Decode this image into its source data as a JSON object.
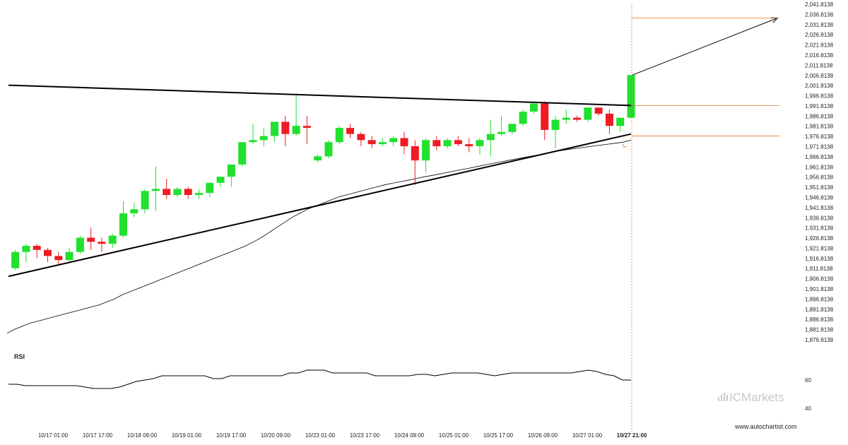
{
  "chart_data": {
    "type": "candlestick",
    "y_axis": {
      "min": 1876.8138,
      "max": 2041.8138,
      "step": 5,
      "tick_labels": [
        "2,041.8138",
        "2,036.8138",
        "2,031.8138",
        "2,026.8138",
        "2,021.8138",
        "2,016.8138",
        "2,011.8138",
        "2,006.8138",
        "2,001.8138",
        "1,996.8138",
        "1,991.8138",
        "1,986.8138",
        "1,981.8138",
        "1,976.8138",
        "1,971.8138",
        "1,966.8138",
        "1,961.8138",
        "1,956.8138",
        "1,951.8138",
        "1,946.8138",
        "1,941.8138",
        "1,936.8138",
        "1,931.8138",
        "1,926.8138",
        "1,921.8138",
        "1,916.8138",
        "1,911.8138",
        "1,906.8138",
        "1,901.8138",
        "1,896.8138",
        "1,891.8138",
        "1,886.8138",
        "1,881.8138",
        "1,876.8138"
      ]
    },
    "x_axis": {
      "tick_labels": [
        "10/17 01:00",
        "10/17 17:00",
        "10/18 09:00",
        "10/19 01:00",
        "10/19 17:00",
        "10/20 09:00",
        "10/23 01:00",
        "10/23 17:00",
        "10/24 09:00",
        "10/25 01:00",
        "10/25 17:00",
        "10/26 09:00",
        "10/27 01:00",
        "10/27 21:00"
      ],
      "highlight_label": "10/27 21:00"
    },
    "candles": [
      {
        "o": 1912,
        "h": 1921,
        "c": 1920,
        "l": 1911
      },
      {
        "o": 1920,
        "h": 1924,
        "c": 1923,
        "l": 1915
      },
      {
        "o": 1923,
        "h": 1924,
        "c": 1921,
        "l": 1917
      },
      {
        "o": 1921,
        "h": 1922,
        "c": 1918,
        "l": 1915
      },
      {
        "o": 1918,
        "h": 1920,
        "c": 1916,
        "l": 1914
      },
      {
        "o": 1916,
        "h": 1922,
        "c": 1920,
        "l": 1915
      },
      {
        "o": 1920,
        "h": 1928,
        "c": 1927,
        "l": 1919
      },
      {
        "o": 1927,
        "h": 1932,
        "c": 1925,
        "l": 1921
      },
      {
        "o": 1925,
        "h": 1927,
        "c": 1924,
        "l": 1920
      },
      {
        "o": 1924,
        "h": 1929,
        "c": 1928,
        "l": 1922
      },
      {
        "o": 1928,
        "h": 1945,
        "c": 1939,
        "l": 1927
      },
      {
        "o": 1939,
        "h": 1944,
        "c": 1941,
        "l": 1937
      },
      {
        "o": 1941,
        "h": 1951,
        "c": 1950,
        "l": 1939
      },
      {
        "o": 1950,
        "h": 1962,
        "c": 1951,
        "l": 1940
      },
      {
        "o": 1951,
        "h": 1956,
        "c": 1948,
        "l": 1946
      },
      {
        "o": 1948,
        "h": 1952,
        "c": 1951,
        "l": 1947
      },
      {
        "o": 1951,
        "h": 1952,
        "c": 1948,
        "l": 1946
      },
      {
        "o": 1948,
        "h": 1951,
        "c": 1949,
        "l": 1946
      },
      {
        "o": 1949,
        "h": 1954,
        "c": 1954,
        "l": 1947
      },
      {
        "o": 1954,
        "h": 1957,
        "c": 1957,
        "l": 1952
      },
      {
        "o": 1957,
        "h": 1963,
        "c": 1963,
        "l": 1952
      },
      {
        "o": 1963,
        "h": 1974,
        "c": 1974,
        "l": 1962
      },
      {
        "o": 1974,
        "h": 1983,
        "c": 1975,
        "l": 1973
      },
      {
        "o": 1975,
        "h": 1981,
        "c": 1977,
        "l": 1972
      },
      {
        "o": 1977,
        "h": 1983,
        "c": 1984,
        "l": 1974
      },
      {
        "o": 1984,
        "h": 1987,
        "c": 1978,
        "l": 1972
      },
      {
        "o": 1978,
        "h": 1998,
        "c": 1982,
        "l": 1977
      },
      {
        "o": 1982,
        "h": 1987,
        "c": 1981,
        "l": 1973
      },
      {
        "o": 1965,
        "h": 1968,
        "c": 1967,
        "l": 1964
      },
      {
        "o": 1967,
        "h": 1975,
        "c": 1974,
        "l": 1966
      },
      {
        "o": 1974,
        "h": 1982,
        "c": 1981,
        "l": 1973
      },
      {
        "o": 1981,
        "h": 1983,
        "c": 1978,
        "l": 1976
      },
      {
        "o": 1978,
        "h": 1979,
        "c": 1975,
        "l": 1972
      },
      {
        "o": 1975,
        "h": 1977,
        "c": 1973,
        "l": 1971
      },
      {
        "o": 1973,
        "h": 1976,
        "c": 1974,
        "l": 1972
      },
      {
        "o": 1974,
        "h": 1977,
        "c": 1976,
        "l": 1972
      },
      {
        "o": 1976,
        "h": 1979,
        "c": 1972,
        "l": 1968
      },
      {
        "o": 1972,
        "h": 1975,
        "c": 1965,
        "l": 1953
      },
      {
        "o": 1965,
        "h": 1976,
        "c": 1975,
        "l": 1959
      },
      {
        "o": 1975,
        "h": 1977,
        "c": 1972,
        "l": 1970
      },
      {
        "o": 1972,
        "h": 1976,
        "c": 1975,
        "l": 1971
      },
      {
        "o": 1975,
        "h": 1977,
        "c": 1973,
        "l": 1972
      },
      {
        "o": 1973,
        "h": 1976,
        "c": 1972,
        "l": 1969
      },
      {
        "o": 1972,
        "h": 1976,
        "c": 1975,
        "l": 1968
      },
      {
        "o": 1975,
        "h": 1985,
        "c": 1978,
        "l": 1967
      },
      {
        "o": 1978,
        "h": 1987,
        "c": 1979,
        "l": 1977
      },
      {
        "o": 1979,
        "h": 1983,
        "c": 1983,
        "l": 1978
      },
      {
        "o": 1983,
        "h": 1990,
        "c": 1989,
        "l": 1982
      },
      {
        "o": 1989,
        "h": 1993,
        "c": 1993,
        "l": 1988
      },
      {
        "o": 1993,
        "h": 1994,
        "c": 1980,
        "l": 1975
      },
      {
        "o": 1980,
        "h": 1987,
        "c": 1985,
        "l": 1971
      },
      {
        "o": 1985,
        "h": 1990,
        "c": 1986,
        "l": 1983
      },
      {
        "o": 1986,
        "h": 1987,
        "c": 1985,
        "l": 1984
      },
      {
        "o": 1985,
        "h": 1991,
        "c": 1991,
        "l": 1984
      },
      {
        "o": 1991,
        "h": 1991,
        "c": 1988,
        "l": 1987
      },
      {
        "o": 1988,
        "h": 1990,
        "c": 1982,
        "l": 1978
      },
      {
        "o": 1982,
        "h": 1986,
        "c": 1986,
        "l": 1979
      },
      {
        "o": 1986,
        "h": 2007,
        "c": 2007,
        "l": 1986
      }
    ],
    "moving_average": [
      1880,
      1882,
      1883.5,
      1885,
      1886,
      1887,
      1888,
      1889,
      1890,
      1891,
      1892,
      1893,
      1894,
      1895.5,
      1897,
      1899,
      1900.5,
      1902,
      1903.5,
      1905,
      1906.5,
      1908,
      1909.5,
      1911,
      1912.5,
      1914,
      1915.5,
      1917,
      1918.5,
      1920,
      1921.5,
      1923,
      1925,
      1927,
      1929.5,
      1932,
      1934.5,
      1937,
      1939,
      1941,
      1942.5,
      1944,
      1945.5,
      1947,
      1948,
      1949,
      1950,
      1951,
      1952,
      1953,
      1953.8,
      1954.5,
      1955.2,
      1956,
      1956.8,
      1957.5,
      1958.2,
      1959,
      1959.8,
      1960.5,
      1961.2,
      1962,
      1962.8,
      1963.5,
      1964.2,
      1965,
      1965.7,
      1966.4,
      1967.1,
      1967.8,
      1968.5,
      1969.2,
      1969.9,
      1970.5,
      1971,
      1971.5,
      1972,
      1972.5,
      1973,
      1973.5,
      1974,
      1975
    ],
    "trendline_upper": {
      "start": 2002,
      "end": 1992
    },
    "trendline_lower": {
      "start": 1908,
      "end": 1978
    },
    "projection": {
      "from": 2007,
      "to": 2035
    },
    "levels": [
      2035,
      1992,
      1977
    ],
    "rsi": {
      "label": "RSI",
      "tick_labels": [
        "60",
        "40"
      ],
      "min": 30,
      "max": 80,
      "values": [
        57,
        57,
        56,
        56,
        56,
        56,
        56,
        56,
        56,
        55,
        54,
        54,
        54,
        55,
        57,
        59,
        60,
        61,
        63,
        63,
        63,
        63,
        63,
        63,
        61,
        61,
        63,
        63,
        63,
        63,
        63,
        63,
        63,
        65,
        65,
        67,
        67,
        67,
        65,
        65,
        65,
        65,
        65,
        63,
        63,
        63,
        63,
        63,
        64,
        64,
        63,
        64,
        65,
        65,
        65,
        65,
        64,
        63,
        64,
        65,
        65,
        65,
        65,
        65,
        65,
        65,
        65,
        66,
        67,
        66,
        64,
        63,
        60,
        60
      ]
    },
    "watermark": "ICMarkets",
    "site": "www.autochartist.com",
    "colors": {
      "bull": "#22e02e",
      "bear": "#ee1c24",
      "level": "#e07020",
      "line": "#000000"
    }
  }
}
